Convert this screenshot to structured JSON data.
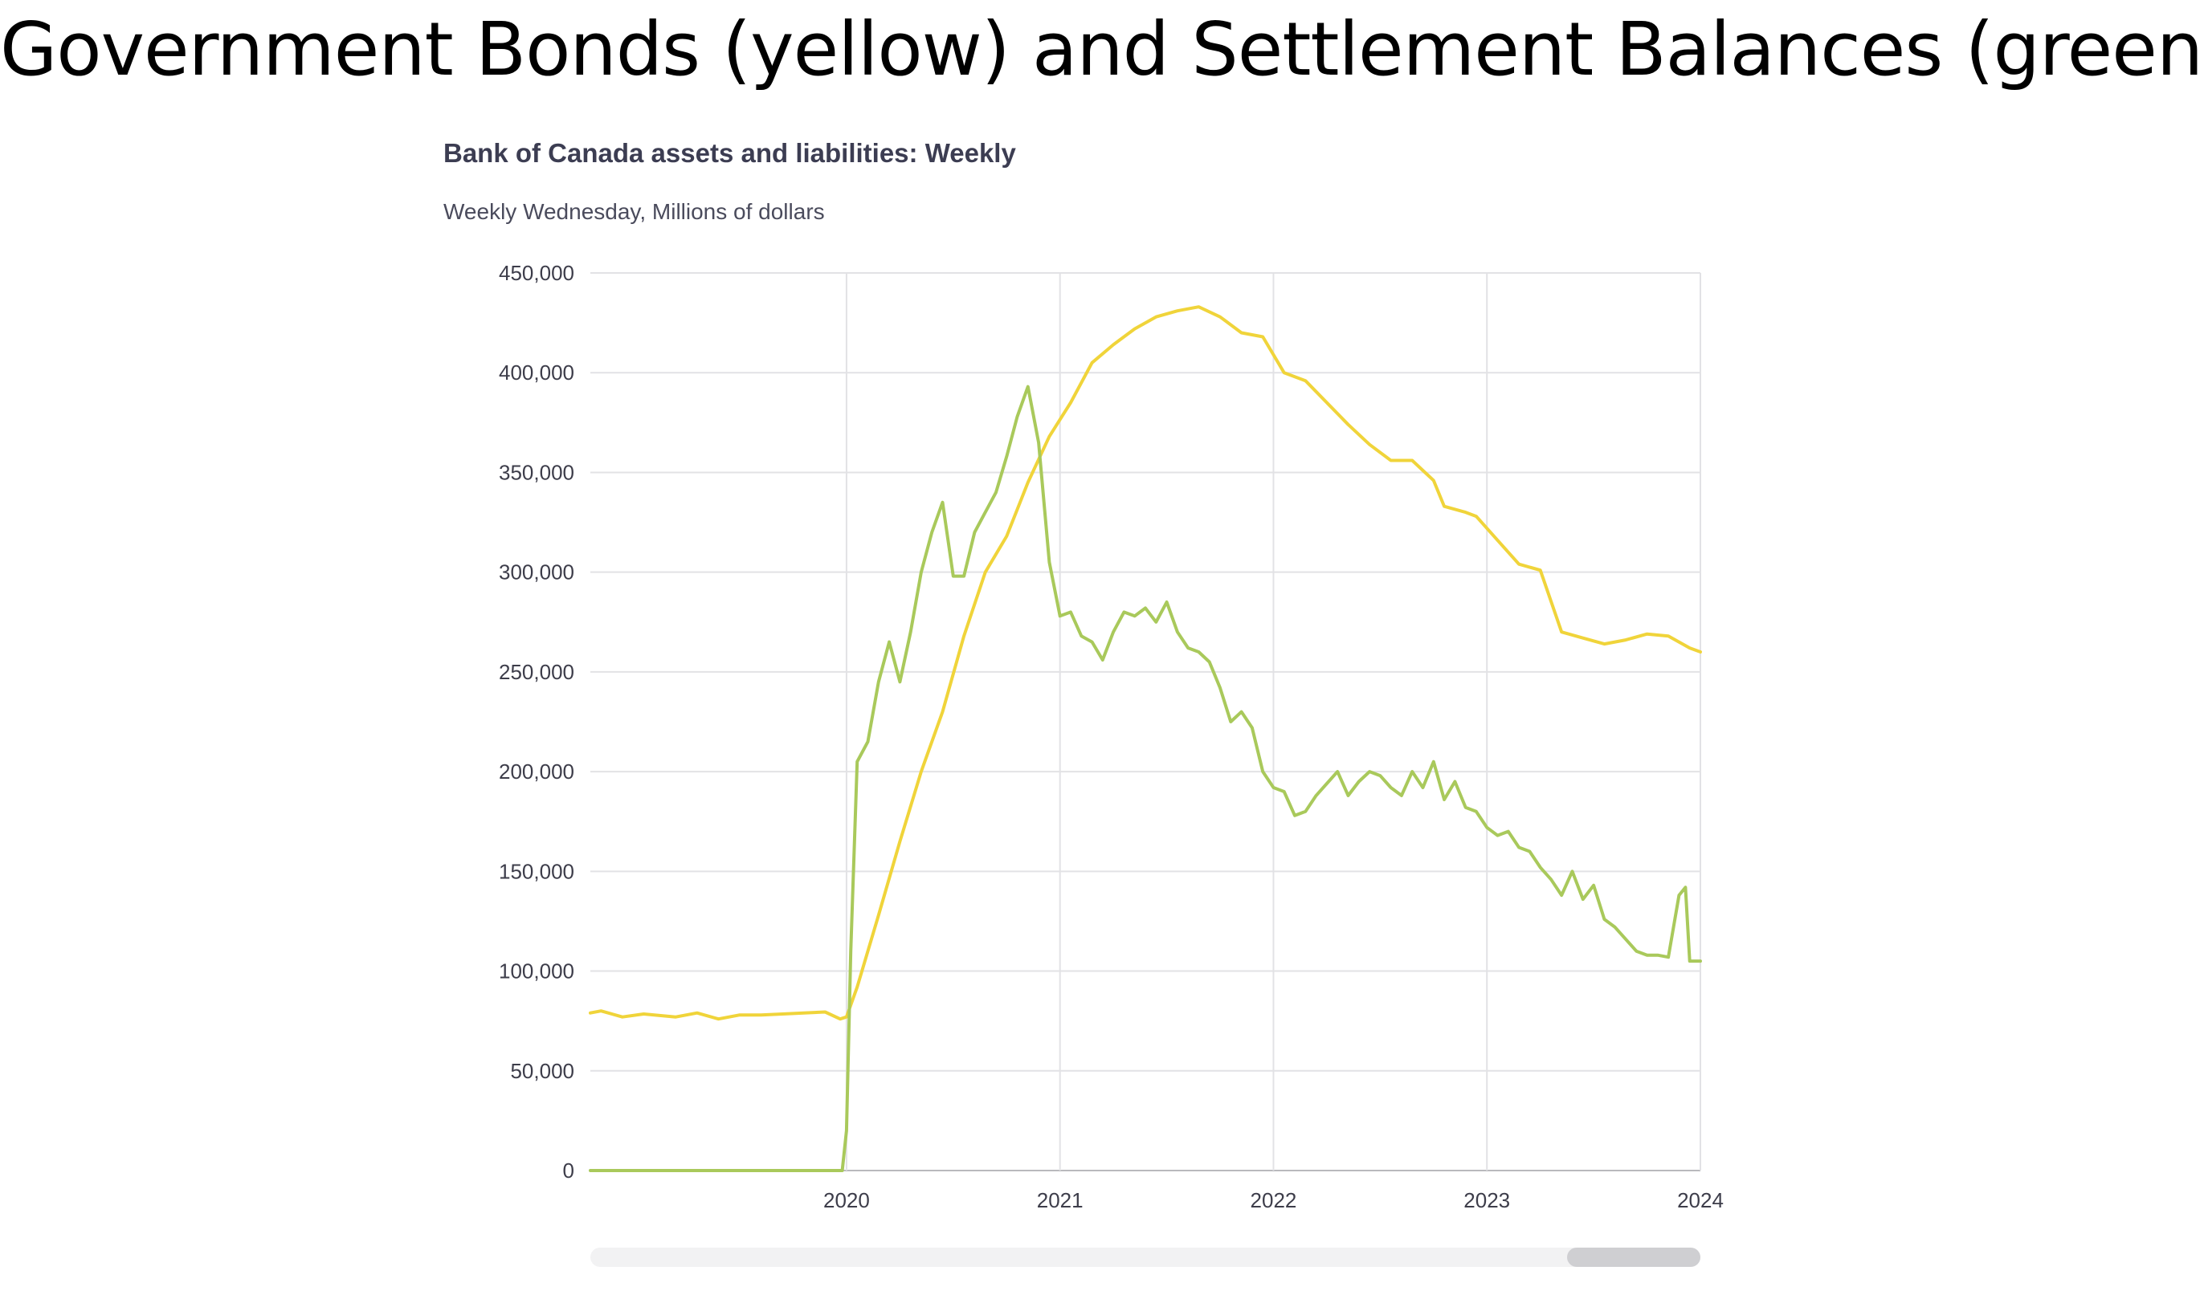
{
  "slide": {
    "title": "Government Bonds (yellow) and Settlement Balances (green)"
  },
  "chart_data": {
    "type": "line",
    "title": "Bank of Canada assets and liabilities: Weekly",
    "subtitle": "Weekly Wednesday, Millions of dollars",
    "xlabel": "",
    "ylabel": "",
    "x_range": [
      2019.0,
      2024.2
    ],
    "ylim": [
      0,
      450000
    ],
    "y_ticks": [
      "0",
      "50,000",
      "100,000",
      "150,000",
      "200,000",
      "250,000",
      "300,000",
      "350,000",
      "400,000",
      "450,000"
    ],
    "y_tick_values": [
      0,
      50000,
      100000,
      150000,
      200000,
      250000,
      300000,
      350000,
      400000,
      450000
    ],
    "x_ticks": [
      "2020",
      "2021",
      "2022",
      "2023",
      "2024"
    ],
    "x_tick_values": [
      2020.2,
      2021.2,
      2022.2,
      2023.2,
      2024.2
    ],
    "grid": true,
    "series": [
      {
        "color": "#f0d43a",
        "x": [
          2019.0,
          2019.05,
          2019.15,
          2019.25,
          2019.4,
          2019.5,
          2019.6,
          2019.7,
          2019.8,
          2019.9,
          2020.0,
          2020.1,
          2020.17,
          2020.2,
          2020.25,
          2020.3,
          2020.35,
          2020.45,
          2020.55,
          2020.65,
          2020.75,
          2020.85,
          2020.95,
          2021.05,
          2021.15,
          2021.25,
          2021.35,
          2021.45,
          2021.55,
          2021.65,
          2021.75,
          2021.85,
          2021.95,
          2022.05,
          2022.1,
          2022.15,
          2022.25,
          2022.35,
          2022.45,
          2022.55,
          2022.65,
          2022.75,
          2022.85,
          2022.95,
          2023.0,
          2023.1,
          2023.15,
          2023.25,
          2023.35,
          2023.45,
          2023.55,
          2023.65,
          2023.75,
          2023.85,
          2023.95,
          2024.05,
          2024.15,
          2024.2
        ],
        "y": [
          79000,
          80000,
          77000,
          78500,
          77000,
          79000,
          76000,
          78000,
          78000,
          78500,
          79000,
          79500,
          76000,
          77000,
          92000,
          110000,
          128000,
          165000,
          200000,
          230000,
          268000,
          300000,
          318000,
          345000,
          368000,
          385000,
          405000,
          414000,
          422000,
          428000,
          431000,
          433000,
          428000,
          420000,
          419000,
          418000,
          400000,
          396000,
          385000,
          374000,
          364000,
          356000,
          356000,
          346000,
          333000,
          330000,
          328000,
          316000,
          304000,
          301000,
          270000,
          267000,
          264000,
          266000,
          269000,
          268000,
          262000,
          260000
        ]
      },
      {
        "color": "#a9c95b",
        "x": [
          2019.0,
          2020.0,
          2020.18,
          2020.2,
          2020.22,
          2020.25,
          2020.3,
          2020.35,
          2020.4,
          2020.45,
          2020.5,
          2020.55,
          2020.6,
          2020.65,
          2020.7,
          2020.75,
          2020.8,
          2020.85,
          2020.9,
          2020.95,
          2021.0,
          2021.05,
          2021.1,
          2021.15,
          2021.2,
          2021.25,
          2021.3,
          2021.35,
          2021.4,
          2021.45,
          2021.5,
          2021.55,
          2021.6,
          2021.65,
          2021.7,
          2021.75,
          2021.8,
          2021.85,
          2021.9,
          2021.95,
          2022.0,
          2022.05,
          2022.1,
          2022.15,
          2022.2,
          2022.25,
          2022.3,
          2022.35,
          2022.4,
          2022.45,
          2022.5,
          2022.55,
          2022.6,
          2022.65,
          2022.7,
          2022.75,
          2022.8,
          2022.85,
          2022.9,
          2022.95,
          2023.0,
          2023.05,
          2023.1,
          2023.15,
          2023.2,
          2023.25,
          2023.3,
          2023.35,
          2023.4,
          2023.45,
          2023.5,
          2023.55,
          2023.6,
          2023.65,
          2023.7,
          2023.75,
          2023.8,
          2023.85,
          2023.9,
          2023.95,
          2024.0,
          2024.05,
          2024.1,
          2024.13,
          2024.15,
          2024.2
        ],
        "y": [
          0,
          0,
          0,
          20000,
          110000,
          205000,
          215000,
          245000,
          265000,
          245000,
          270000,
          300000,
          320000,
          335000,
          298000,
          298000,
          320000,
          330000,
          340000,
          358000,
          378000,
          393000,
          365000,
          305000,
          278000,
          280000,
          268000,
          265000,
          256000,
          270000,
          280000,
          278000,
          282000,
          275000,
          285000,
          270000,
          262000,
          260000,
          255000,
          242000,
          225000,
          230000,
          222000,
          200000,
          192000,
          190000,
          178000,
          180000,
          188000,
          194000,
          200000,
          188000,
          195000,
          200000,
          198000,
          192000,
          188000,
          200000,
          192000,
          205000,
          186000,
          195000,
          182000,
          180000,
          172000,
          168000,
          170000,
          162000,
          160000,
          152000,
          146000,
          138000,
          150000,
          136000,
          143000,
          126000,
          122000,
          116000,
          110000,
          108000,
          108000,
          107000,
          138000,
          142000,
          105000,
          105000
        ]
      }
    ]
  }
}
